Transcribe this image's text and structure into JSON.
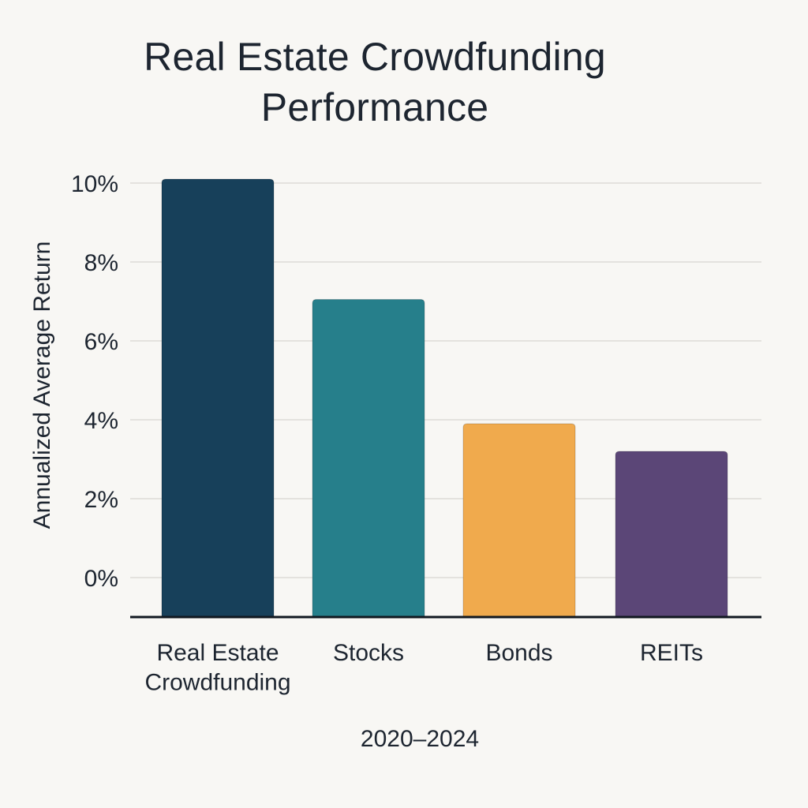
{
  "chart_data": {
    "type": "bar",
    "title": "Real Estate Crowdfunding Performance",
    "xlabel": "2020–2024",
    "ylabel": "Annualized Average Return",
    "categories": [
      "Real Estate\nCrowdfunding",
      "Stocks",
      "Bonds",
      "REITs"
    ],
    "values": [
      10.1,
      7.05,
      3.9,
      3.2
    ],
    "ylim": [
      -1,
      10.6
    ],
    "yticks": [
      0,
      2,
      4,
      6,
      8,
      10
    ],
    "ytick_labels": [
      "0%",
      "2%",
      "4%",
      "6%",
      "8%",
      "10%"
    ],
    "grid": true,
    "legend": "none",
    "colors": [
      "#17405a",
      "#267f8b",
      "#f0aa4d",
      "#5b4677"
    ]
  }
}
